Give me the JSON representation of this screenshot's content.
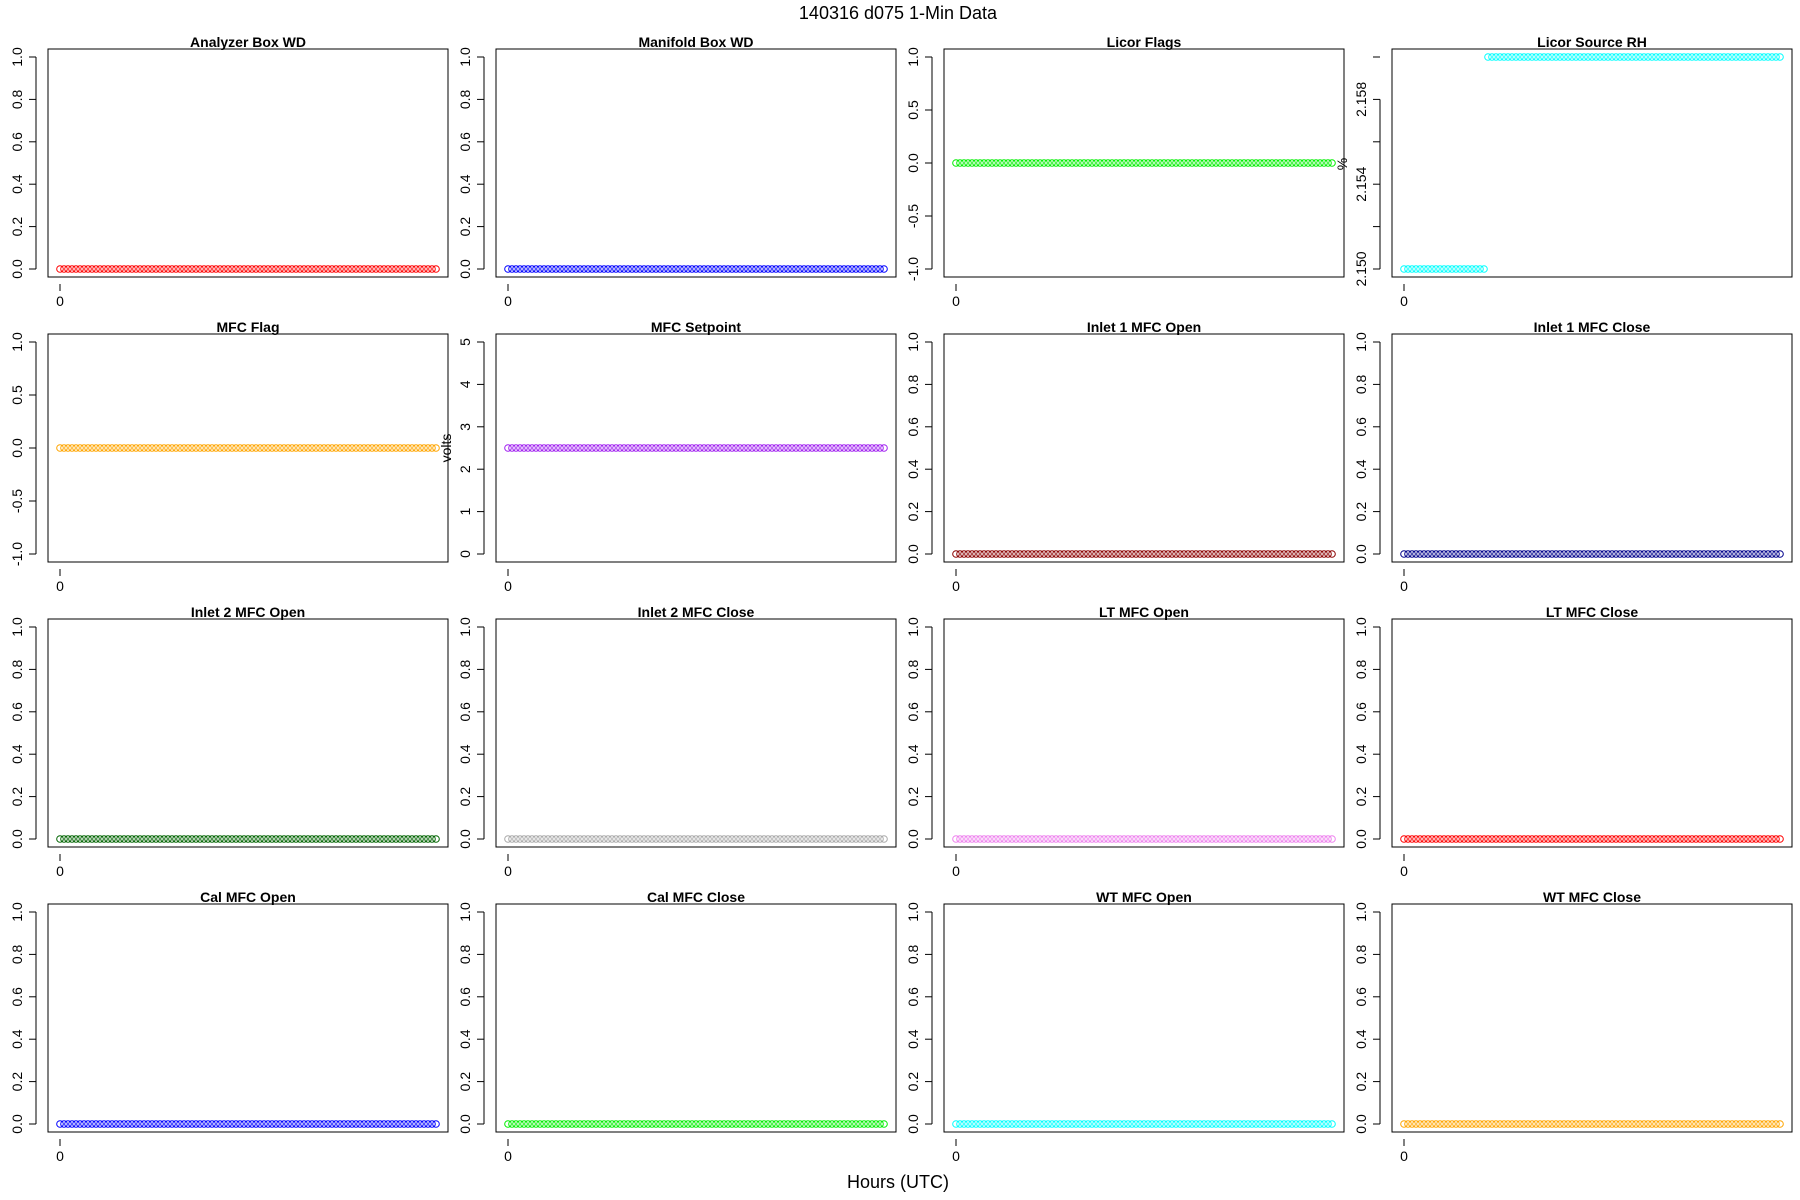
{
  "figure": {
    "title": "140316   d075   1-Min Data",
    "xlabel": "Hours (UTC)"
  },
  "chart_data": [
    {
      "type": "scatter",
      "title": "Analyzer Box WD",
      "ylabel": "",
      "color": "#ff0000",
      "xlim": [
        0,
        95
      ],
      "ylim": [
        0,
        1
      ],
      "yticks": [
        "0.0",
        "0.2",
        "0.4",
        "0.6",
        "0.8",
        "1.0"
      ],
      "xticks": [
        "0"
      ],
      "n": 95,
      "values": [
        {
          "from": 0,
          "to": 94,
          "y": 0
        }
      ]
    },
    {
      "type": "scatter",
      "title": "Manifold Box WD",
      "ylabel": "",
      "color": "#0000ff",
      "xlim": [
        0,
        95
      ],
      "ylim": [
        0,
        1
      ],
      "yticks": [
        "0.0",
        "0.2",
        "0.4",
        "0.6",
        "0.8",
        "1.0"
      ],
      "xticks": [
        "0"
      ],
      "n": 95,
      "values": [
        {
          "from": 0,
          "to": 94,
          "y": 0
        }
      ]
    },
    {
      "type": "scatter",
      "title": "Licor Flags",
      "ylabel": "",
      "color": "#00ee00",
      "xlim": [
        0,
        95
      ],
      "ylim": [
        -1,
        1
      ],
      "yticks": [
        "-1.0",
        "-0.5",
        "0.0",
        "0.5",
        "1.0"
      ],
      "xticks": [
        "0"
      ],
      "n": 95,
      "values": [
        {
          "from": 0,
          "to": 94,
          "y": 0
        }
      ]
    },
    {
      "type": "scatter",
      "title": "Licor Source RH",
      "ylabel": "%",
      "color": "#00ffff",
      "xlim": [
        0,
        95
      ],
      "ylim": [
        2.15,
        2.16
      ],
      "yticks": [
        "2.150",
        "2.154",
        "2.158"
      ],
      "xticks": [
        "0"
      ],
      "n": 95,
      "values": [
        {
          "from": 0,
          "to": 20,
          "y": 2.15
        },
        {
          "from": 21,
          "to": 94,
          "y": 2.16
        }
      ]
    },
    {
      "type": "scatter",
      "title": "MFC Flag",
      "ylabel": "",
      "color": "#ffa500",
      "xlim": [
        0,
        95
      ],
      "ylim": [
        -1,
        1
      ],
      "yticks": [
        "-1.0",
        "-0.5",
        "0.0",
        "0.5",
        "1.0"
      ],
      "xticks": [
        "0"
      ],
      "n": 95,
      "values": [
        {
          "from": 0,
          "to": 94,
          "y": 0
        }
      ]
    },
    {
      "type": "scatter",
      "title": "MFC Setpoint",
      "ylabel": "volts",
      "color": "#a020f0",
      "xlim": [
        0,
        95
      ],
      "ylim": [
        0,
        5
      ],
      "yticks": [
        "0",
        "1",
        "2",
        "3",
        "4",
        "5"
      ],
      "xticks": [
        "0"
      ],
      "n": 95,
      "values": [
        {
          "from": 0,
          "to": 94,
          "y": 2.5
        }
      ]
    },
    {
      "type": "scatter",
      "title": "Inlet 1 MFC Open",
      "ylabel": "",
      "color": "#8b0000",
      "xlim": [
        0,
        95
      ],
      "ylim": [
        0,
        1
      ],
      "yticks": [
        "0.0",
        "0.2",
        "0.4",
        "0.6",
        "0.8",
        "1.0"
      ],
      "xticks": [
        "0"
      ],
      "n": 95,
      "values": [
        {
          "from": 0,
          "to": 94,
          "y": 0
        }
      ]
    },
    {
      "type": "scatter",
      "title": "Inlet 1 MFC Close",
      "ylabel": "",
      "color": "#00008b",
      "xlim": [
        0,
        95
      ],
      "ylim": [
        0,
        1
      ],
      "yticks": [
        "0.0",
        "0.2",
        "0.4",
        "0.6",
        "0.8",
        "1.0"
      ],
      "xticks": [
        "0"
      ],
      "n": 95,
      "values": [
        {
          "from": 0,
          "to": 94,
          "y": 0
        }
      ]
    },
    {
      "type": "scatter",
      "title": "Inlet 2 MFC Open",
      "ylabel": "",
      "color": "#006400",
      "xlim": [
        0,
        95
      ],
      "ylim": [
        0,
        1
      ],
      "yticks": [
        "0.0",
        "0.2",
        "0.4",
        "0.6",
        "0.8",
        "1.0"
      ],
      "xticks": [
        "0"
      ],
      "n": 95,
      "values": [
        {
          "from": 0,
          "to": 94,
          "y": 0
        }
      ]
    },
    {
      "type": "scatter",
      "title": "Inlet 2 MFC Close",
      "ylabel": "",
      "color": "#a9a9a9",
      "xlim": [
        0,
        95
      ],
      "ylim": [
        0,
        1
      ],
      "yticks": [
        "0.0",
        "0.2",
        "0.4",
        "0.6",
        "0.8",
        "1.0"
      ],
      "xticks": [
        "0"
      ],
      "n": 95,
      "values": [
        {
          "from": 0,
          "to": 94,
          "y": 0
        }
      ]
    },
    {
      "type": "scatter",
      "title": "LT MFC Open",
      "ylabel": "",
      "color": "#ee82ee",
      "xlim": [
        0,
        95
      ],
      "ylim": [
        0,
        1
      ],
      "yticks": [
        "0.0",
        "0.2",
        "0.4",
        "0.6",
        "0.8",
        "1.0"
      ],
      "xticks": [
        "0"
      ],
      "n": 95,
      "values": [
        {
          "from": 0,
          "to": 94,
          "y": 0
        }
      ]
    },
    {
      "type": "scatter",
      "title": "LT MFC Close",
      "ylabel": "",
      "color": "#ff0000",
      "xlim": [
        0,
        95
      ],
      "ylim": [
        0,
        1
      ],
      "yticks": [
        "0.0",
        "0.2",
        "0.4",
        "0.6",
        "0.8",
        "1.0"
      ],
      "xticks": [
        "0"
      ],
      "n": 95,
      "values": [
        {
          "from": 0,
          "to": 94,
          "y": 0
        }
      ]
    },
    {
      "type": "scatter",
      "title": "Cal MFC Open",
      "ylabel": "",
      "color": "#0000ff",
      "xlim": [
        0,
        95
      ],
      "ylim": [
        0,
        1
      ],
      "yticks": [
        "0.0",
        "0.2",
        "0.4",
        "0.6",
        "0.8",
        "1.0"
      ],
      "xticks": [
        "0"
      ],
      "n": 95,
      "values": [
        {
          "from": 0,
          "to": 94,
          "y": 0
        }
      ]
    },
    {
      "type": "scatter",
      "title": "Cal MFC Close",
      "ylabel": "",
      "color": "#00ee00",
      "xlim": [
        0,
        95
      ],
      "ylim": [
        0,
        1
      ],
      "yticks": [
        "0.0",
        "0.2",
        "0.4",
        "0.6",
        "0.8",
        "1.0"
      ],
      "xticks": [
        "0"
      ],
      "n": 95,
      "values": [
        {
          "from": 0,
          "to": 94,
          "y": 0
        }
      ]
    },
    {
      "type": "scatter",
      "title": "WT MFC Open",
      "ylabel": "",
      "color": "#00ffff",
      "xlim": [
        0,
        95
      ],
      "ylim": [
        0,
        1
      ],
      "yticks": [
        "0.0",
        "0.2",
        "0.4",
        "0.6",
        "0.8",
        "1.0"
      ],
      "xticks": [
        "0"
      ],
      "n": 95,
      "values": [
        {
          "from": 0,
          "to": 94,
          "y": 0
        }
      ]
    },
    {
      "type": "scatter",
      "title": "WT MFC Close",
      "ylabel": "",
      "color": "#ffa500",
      "xlim": [
        0,
        95
      ],
      "ylim": [
        0,
        1
      ],
      "yticks": [
        "0.0",
        "0.2",
        "0.4",
        "0.6",
        "0.8",
        "1.0"
      ],
      "xticks": [
        "0"
      ],
      "n": 95,
      "values": [
        {
          "from": 0,
          "to": 94,
          "y": 0
        }
      ]
    }
  ]
}
